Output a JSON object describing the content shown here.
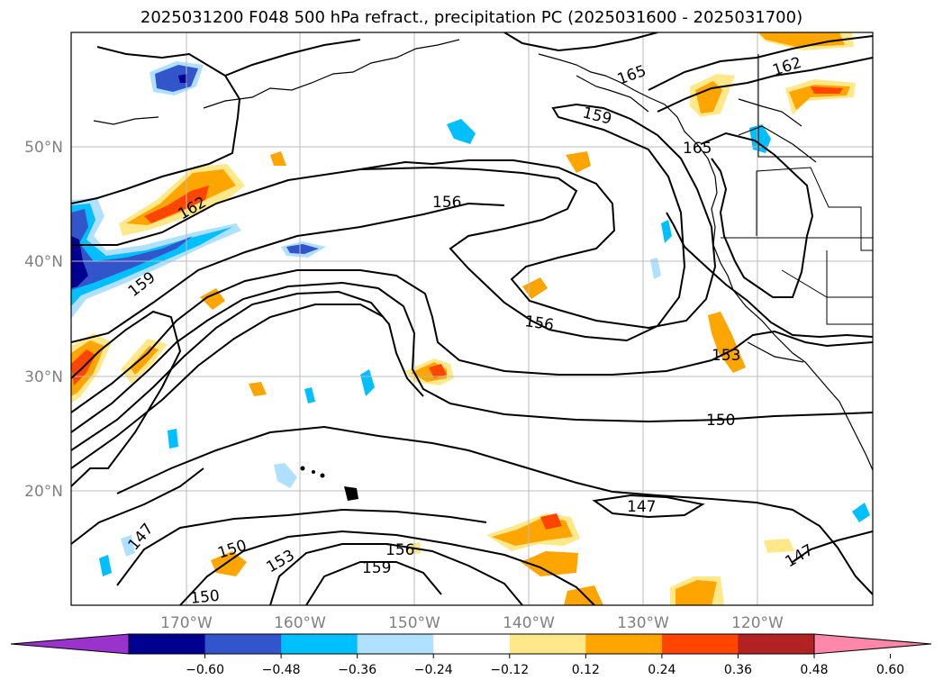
{
  "title": "2025031200 F048 500 hPa refract., precipitation PC (2025031600 - 2025031700)",
  "map": {
    "lat_labels": [
      "50°N",
      "40°N",
      "30°N",
      "20°N"
    ],
    "lon_labels": [
      "170°W",
      "160°W",
      "150°W",
      "140°W",
      "130°W",
      "120°W"
    ],
    "contour_labels": [
      "156",
      "156",
      "159",
      "159",
      "162",
      "162",
      "165",
      "165",
      "153",
      "150",
      "147",
      "147",
      "147",
      "150",
      "153",
      "156",
      "159",
      "150"
    ]
  },
  "colorbar": {
    "tick_labels": [
      "−0.60",
      "−0.48",
      "−0.36",
      "−0.24",
      "−0.12",
      "0.12",
      "0.24",
      "0.36",
      "0.48",
      "0.60"
    ],
    "colors": [
      "#9933cc",
      "#000090",
      "#3355cc",
      "#00bfff",
      "#b0e0ff",
      "#ffffff",
      "#ffe88a",
      "#ffa500",
      "#ff4500",
      "#b22222",
      "#ff88aa"
    ]
  }
}
